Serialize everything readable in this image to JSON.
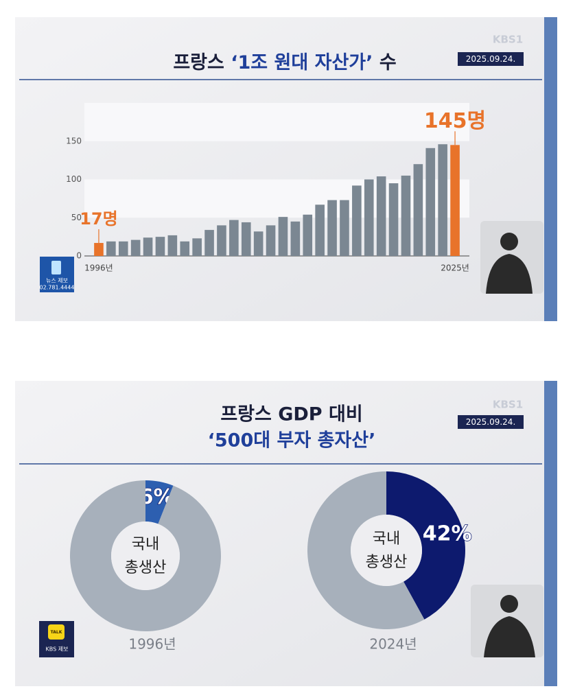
{
  "frames": [
    {
      "logo": "KBS1",
      "date": "2025.09.24.",
      "tip": [
        "뉴스 제보",
        "02.781.4444"
      ]
    },
    {
      "logo": "KBS1",
      "date": "2025.09.24.",
      "title": [
        "프랑스 GDP 대비",
        "‘500대 부자 총자산’"
      ],
      "tip": [
        "TALK",
        "KBS 제보"
      ]
    }
  ],
  "chart_data": [
    {
      "type": "bar",
      "title": [
        "프랑스",
        "‘1조 원대 자산가’",
        "수"
      ],
      "categories": [
        "1996년",
        null,
        null,
        null,
        null,
        null,
        null,
        null,
        null,
        null,
        null,
        null,
        null,
        null,
        null,
        null,
        null,
        null,
        null,
        null,
        null,
        null,
        null,
        null,
        null,
        null,
        null,
        null,
        null,
        "2025년"
      ],
      "values": [
        17,
        19,
        19,
        21,
        24,
        25,
        27,
        19,
        23,
        34,
        40,
        47,
        44,
        32,
        40,
        51,
        45,
        54,
        67,
        73,
        73,
        92,
        100,
        104,
        95,
        105,
        120,
        141,
        146,
        145
      ],
      "value_labels": [
        "17명",
        null,
        null,
        null,
        null,
        null,
        null,
        null,
        null,
        null,
        null,
        null,
        null,
        null,
        null,
        null,
        null,
        null,
        null,
        null,
        null,
        null,
        null,
        null,
        null,
        null,
        null,
        null,
        null,
        "145명"
      ],
      "colors": [
        "#e8732a",
        "#7b8792",
        "#7b8792",
        "#7b8792",
        "#7b8792",
        "#7b8792",
        "#7b8792",
        "#7b8792",
        "#7b8792",
        "#7b8792",
        "#7b8792",
        "#7b8792",
        "#7b8792",
        "#7b8792",
        "#7b8792",
        "#7b8792",
        "#7b8792",
        "#7b8792",
        "#7b8792",
        "#7b8792",
        "#7b8792",
        "#7b8792",
        "#7b8792",
        "#7b8792",
        "#7b8792",
        "#7b8792",
        "#7b8792",
        "#7b8792",
        "#7b8792",
        "#e8732a"
      ],
      "ylim": [
        0,
        200
      ],
      "yticks": [
        0,
        50,
        100,
        150
      ],
      "grid_bands": true
    },
    {
      "type": "pie",
      "values": [
        6,
        94
      ],
      "value_labels": [
        "6%",
        null
      ],
      "colors": [
        "#2d5fb0",
        "#a7b0bb"
      ],
      "center_label": [
        "국내",
        "총생산"
      ],
      "xlabel": "1996년"
    },
    {
      "type": "pie",
      "values": [
        42,
        58
      ],
      "value_labels": [
        "42%",
        null
      ],
      "colors": [
        "#0d1a6e",
        "#a7b0bb"
      ],
      "center_label": [
        "국내",
        "총생산"
      ],
      "xlabel": "2024년"
    }
  ]
}
